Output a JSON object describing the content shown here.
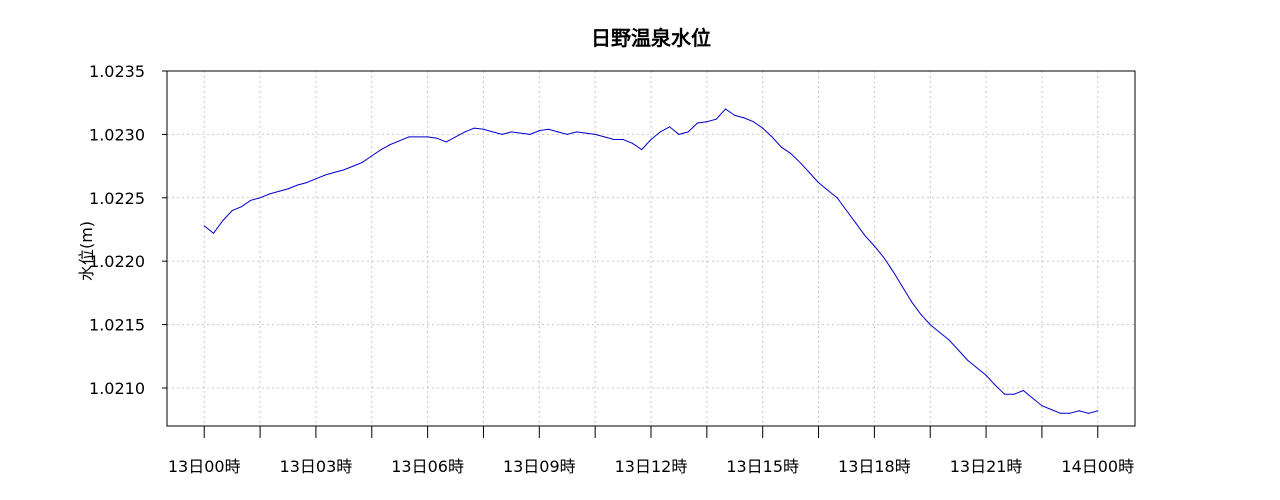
{
  "chart_data": {
    "type": "line",
    "title": "日野温泉水位",
    "xlabel": "",
    "ylabel": "水位(m)",
    "ylim": [
      1.0207,
      1.0235
    ],
    "xlim": [
      -1.0,
      25.0
    ],
    "grid": true,
    "yticks": [
      1.021,
      1.0215,
      1.022,
      1.0225,
      1.023,
      1.0235
    ],
    "ytick_labels": [
      "1.0210",
      "1.0215",
      "1.0220",
      "1.0225",
      "1.0230",
      "1.0235"
    ],
    "xticks": [
      0,
      3,
      6,
      9,
      12,
      15,
      18,
      21,
      24
    ],
    "xtick_labels": [
      "13日00時",
      "13日03時",
      "13日06時",
      "13日09時",
      "13日12時",
      "13日15時",
      "13日18時",
      "13日21時",
      "14日00時"
    ],
    "series": [
      {
        "name": "",
        "color": "#0000cc",
        "x": [
          0,
          0.25,
          0.5,
          0.75,
          1,
          1.25,
          1.5,
          1.75,
          2,
          2.25,
          2.5,
          2.75,
          3,
          3.25,
          3.5,
          3.75,
          4,
          4.25,
          4.5,
          4.75,
          5,
          5.25,
          5.5,
          5.75,
          6,
          6.25,
          6.5,
          6.75,
          7,
          7.25,
          7.5,
          7.75,
          8,
          8.25,
          8.5,
          8.75,
          9,
          9.25,
          9.5,
          9.75,
          10,
          10.25,
          10.5,
          10.75,
          11,
          11.25,
          11.5,
          11.75,
          12,
          12.25,
          12.5,
          12.75,
          13,
          13.25,
          13.5,
          13.75,
          14,
          14.25,
          14.5,
          14.75,
          15,
          15.25,
          15.5,
          15.75,
          16,
          16.25,
          16.5,
          16.75,
          17,
          17.25,
          17.5,
          17.75,
          18,
          18.25,
          18.5,
          18.75,
          19,
          19.25,
          19.5,
          19.75,
          20,
          20.25,
          20.5,
          20.75,
          21,
          21.25,
          21.5,
          21.75,
          22,
          22.25,
          22.5,
          22.75,
          23,
          23.25,
          23.5,
          23.75,
          24
        ],
        "values": [
          1.02228,
          1.02222,
          1.02232,
          1.0224,
          1.02243,
          1.02248,
          1.0225,
          1.02253,
          1.02255,
          1.02257,
          1.0226,
          1.02262,
          1.02265,
          1.02268,
          1.0227,
          1.02272,
          1.02275,
          1.02278,
          1.02283,
          1.02288,
          1.02292,
          1.02295,
          1.02298,
          1.02298,
          1.02298,
          1.02297,
          1.02294,
          1.02298,
          1.02302,
          1.02305,
          1.02304,
          1.02302,
          1.023,
          1.02302,
          1.02301,
          1.023,
          1.02303,
          1.02304,
          1.02302,
          1.023,
          1.02302,
          1.02301,
          1.023,
          1.02298,
          1.02296,
          1.02296,
          1.02293,
          1.02288,
          1.02296,
          1.02302,
          1.02306,
          1.023,
          1.02302,
          1.02309,
          1.0231,
          1.02312,
          1.0232,
          1.02315,
          1.02313,
          1.0231,
          1.02305,
          1.02298,
          1.0229,
          1.02285,
          1.02278,
          1.0227,
          1.02262,
          1.02256,
          1.0225,
          1.0224,
          1.0223,
          1.0222,
          1.02212,
          1.02203,
          1.02192,
          1.0218,
          1.02168,
          1.02158,
          1.0215,
          1.02144,
          1.02138,
          1.0213,
          1.02122,
          1.02116,
          1.0211,
          1.02102,
          1.02095,
          1.02095,
          1.02098,
          1.02092,
          1.02086,
          1.02083,
          1.0208,
          1.0208,
          1.02082,
          1.0208,
          1.02082
        ]
      }
    ]
  }
}
